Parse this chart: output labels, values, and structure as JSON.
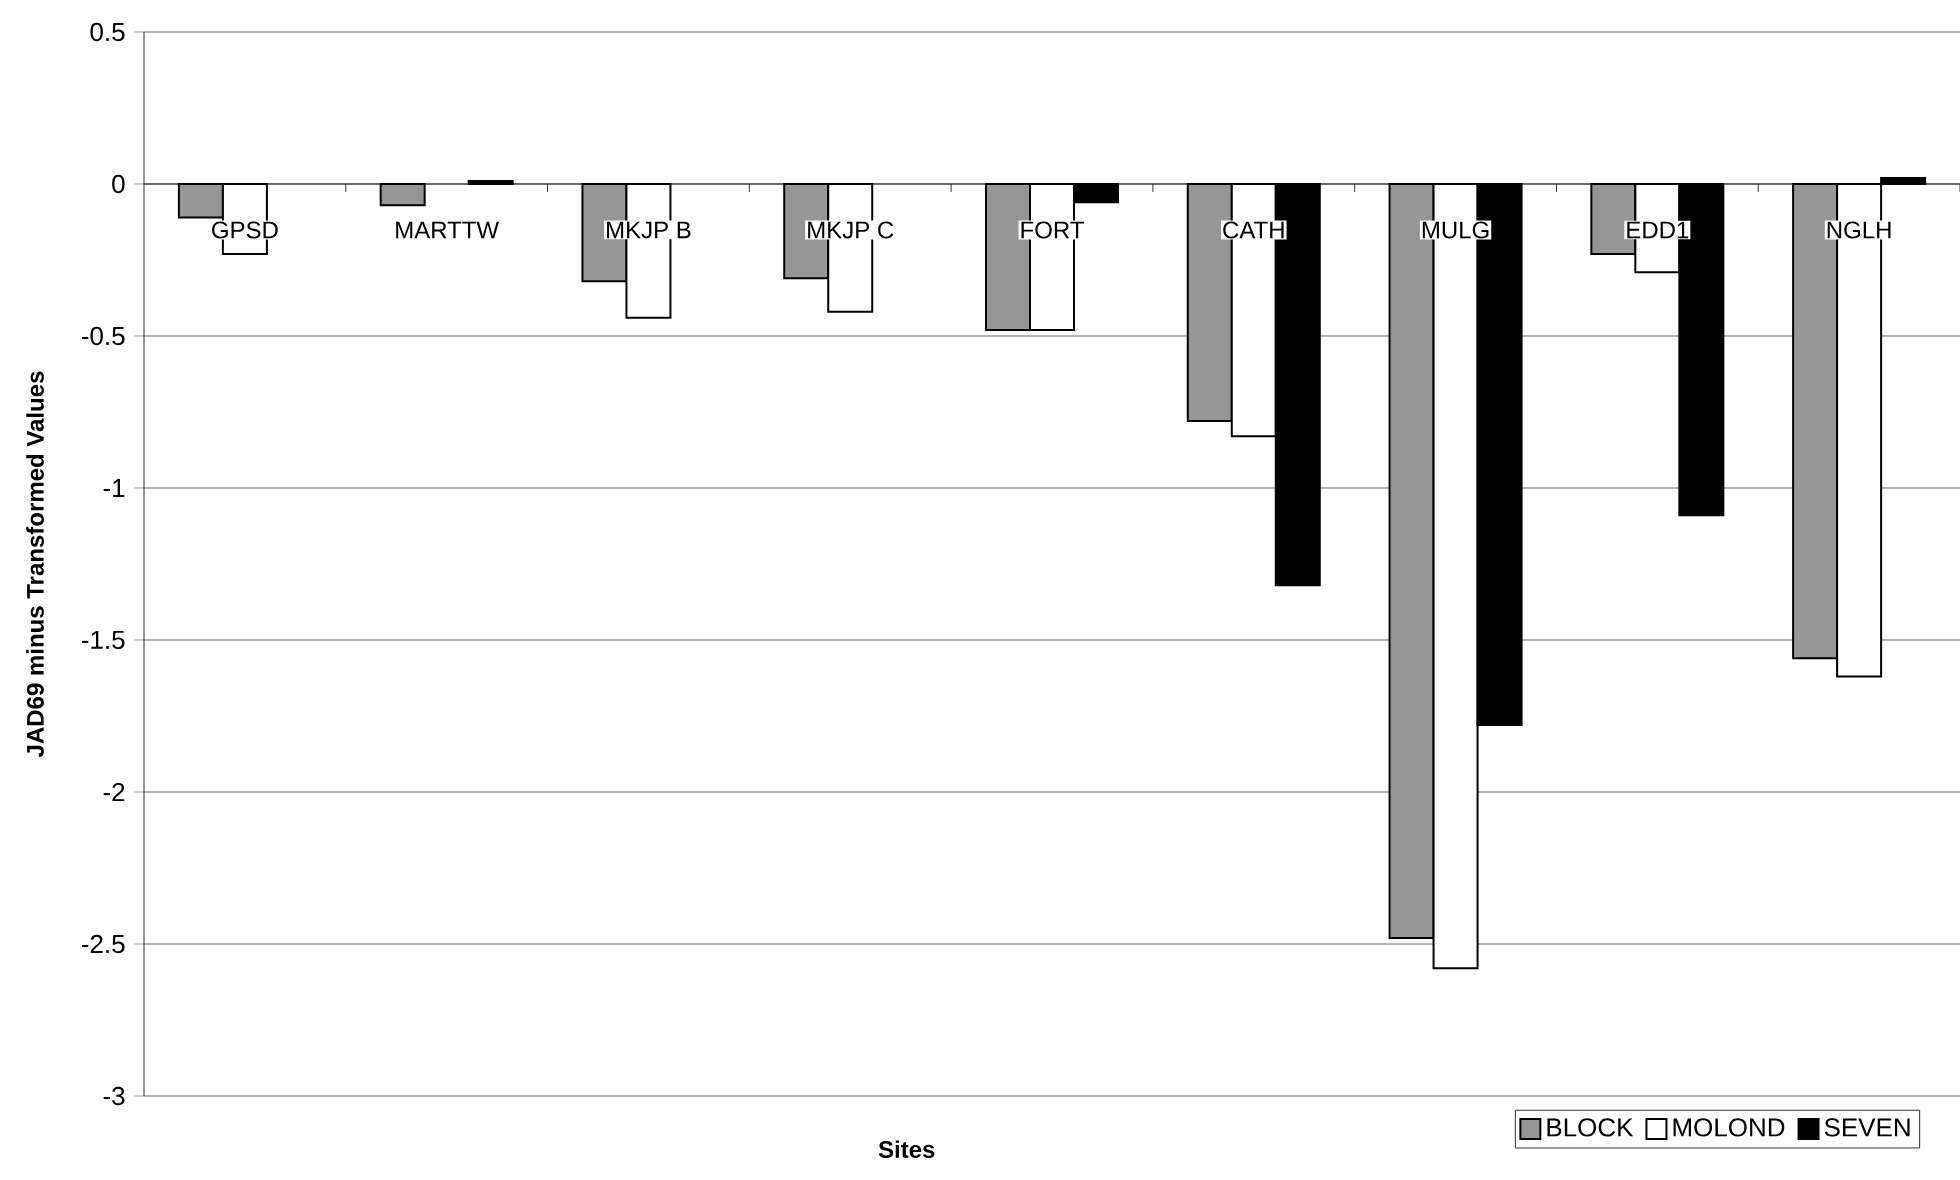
{
  "chart_data": {
    "type": "bar",
    "xlabel": "Sites",
    "ylabel": "JAD69 minus Transformed Values",
    "categories": [
      "GPSD",
      "MARTTW",
      "MKJP B",
      "MKJP C",
      "FORT",
      "CATH",
      "MULG",
      "EDD1",
      "NGLH"
    ],
    "series": [
      {
        "name": "BLOCK",
        "color": "#969696",
        "values": [
          -0.11,
          -0.07,
          -0.32,
          -0.31,
          -0.48,
          -0.78,
          -2.48,
          -0.23,
          -1.56
        ]
      },
      {
        "name": "MOLOND",
        "color": "#ffffff",
        "values": [
          -0.23,
          null,
          -0.44,
          -0.42,
          -0.48,
          -0.83,
          -2.58,
          -0.29,
          -1.62
        ]
      },
      {
        "name": "SEVEN",
        "color": "#000000",
        "values": [
          null,
          0.01,
          null,
          null,
          -0.06,
          -1.32,
          -1.78,
          -1.09,
          0.02
        ]
      }
    ],
    "ylim": [
      -3,
      0.5
    ],
    "yticks": [
      0.5,
      0,
      -0.5,
      -1,
      -1.5,
      -2,
      -2.5,
      -3
    ],
    "grid": "y",
    "legend": "bottom right"
  }
}
